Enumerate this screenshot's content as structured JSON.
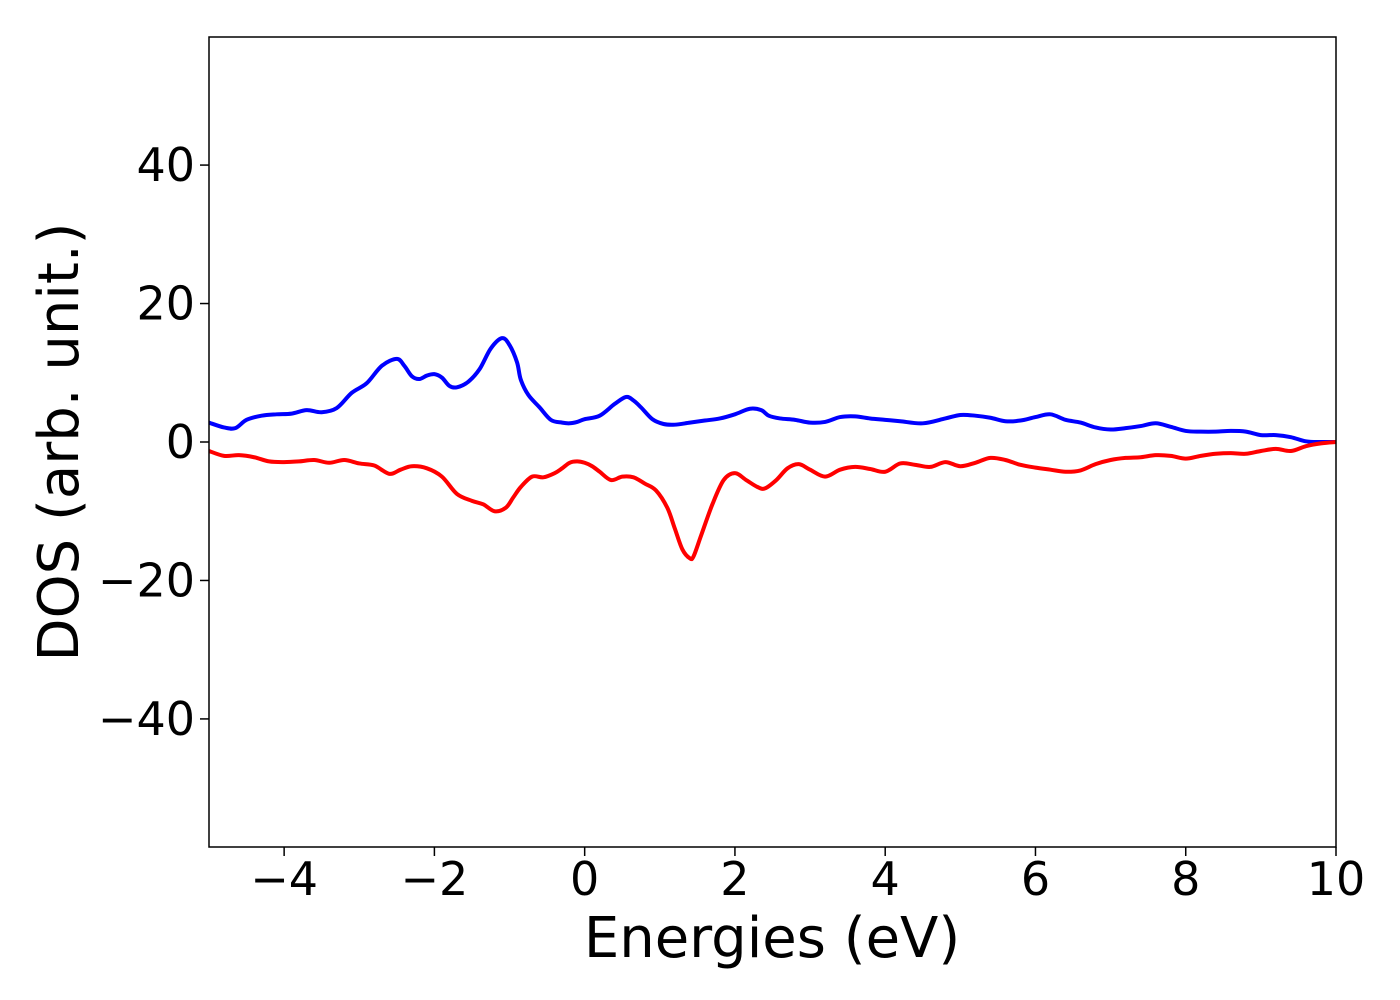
{
  "chart_data": {
    "type": "line",
    "title": "",
    "xlabel": "Energies (eV)",
    "ylabel": "DOS (arb. unit.)",
    "xlim": [
      -5,
      10
    ],
    "ylim": [
      -58.5,
      58.5
    ],
    "x_ticks": [
      {
        "value": -4,
        "label": "−4"
      },
      {
        "value": -2,
        "label": "−2"
      },
      {
        "value": 0,
        "label": "0"
      },
      {
        "value": 2,
        "label": "2"
      },
      {
        "value": 4,
        "label": "4"
      },
      {
        "value": 6,
        "label": "6"
      },
      {
        "value": 8,
        "label": "8"
      },
      {
        "value": 10,
        "label": "10"
      }
    ],
    "y_ticks": [
      {
        "value": 40,
        "label": "40"
      },
      {
        "value": 20,
        "label": "20"
      },
      {
        "value": 0,
        "label": "0"
      },
      {
        "value": -20,
        "label": "−20"
      },
      {
        "value": -40,
        "label": "−40"
      }
    ],
    "grid": false,
    "legend": "none",
    "series": [
      {
        "color": "#0000ff",
        "x": [
          -5.0,
          -4.8,
          -4.65,
          -4.5,
          -4.3,
          -4.1,
          -3.9,
          -3.7,
          -3.5,
          -3.3,
          -3.1,
          -2.9,
          -2.7,
          -2.5,
          -2.4,
          -2.3,
          -2.2,
          -2.1,
          -2.0,
          -1.9,
          -1.8,
          -1.7,
          -1.55,
          -1.4,
          -1.25,
          -1.1,
          -1.0,
          -0.9,
          -0.85,
          -0.75,
          -0.6,
          -0.45,
          -0.3,
          -0.2,
          -0.1,
          0.0,
          0.2,
          0.4,
          0.55,
          0.65,
          0.75,
          0.9,
          1.05,
          1.2,
          1.4,
          1.6,
          1.8,
          2.0,
          2.2,
          2.35,
          2.45,
          2.6,
          2.8,
          3.0,
          3.2,
          3.4,
          3.6,
          3.8,
          4.0,
          4.2,
          4.5,
          4.8,
          5.0,
          5.2,
          5.4,
          5.6,
          5.8,
          6.0,
          6.2,
          6.4,
          6.6,
          6.8,
          7.0,
          7.2,
          7.4,
          7.6,
          7.8,
          8.0,
          8.2,
          8.4,
          8.6,
          8.8,
          9.0,
          9.2,
          9.4,
          9.6,
          9.8,
          10.0
        ],
        "y": [
          2.8,
          2.1,
          2.0,
          3.2,
          3.8,
          4.0,
          4.1,
          4.6,
          4.3,
          4.9,
          7.1,
          8.5,
          11.0,
          12.0,
          11.0,
          9.5,
          9.1,
          9.6,
          9.8,
          9.3,
          8.1,
          7.9,
          8.7,
          10.5,
          13.5,
          15.0,
          14.0,
          11.5,
          9.0,
          6.8,
          5.0,
          3.2,
          2.8,
          2.7,
          2.9,
          3.3,
          3.8,
          5.5,
          6.5,
          6.0,
          5.0,
          3.3,
          2.6,
          2.5,
          2.8,
          3.1,
          3.4,
          4.0,
          4.8,
          4.6,
          3.8,
          3.4,
          3.2,
          2.8,
          2.9,
          3.6,
          3.7,
          3.4,
          3.2,
          3.0,
          2.7,
          3.4,
          3.9,
          3.8,
          3.5,
          3.0,
          3.1,
          3.6,
          4.0,
          3.2,
          2.8,
          2.1,
          1.8,
          2.0,
          2.3,
          2.7,
          2.2,
          1.6,
          1.5,
          1.5,
          1.6,
          1.5,
          1.0,
          1.0,
          0.7,
          0.1,
          0.0,
          0.0
        ]
      },
      {
        "color": "#ff0000",
        "x": [
          -5.0,
          -4.8,
          -4.6,
          -4.4,
          -4.2,
          -4.0,
          -3.8,
          -3.6,
          -3.4,
          -3.2,
          -3.0,
          -2.8,
          -2.6,
          -2.45,
          -2.3,
          -2.1,
          -1.9,
          -1.7,
          -1.5,
          -1.35,
          -1.2,
          -1.05,
          -0.95,
          -0.85,
          -0.7,
          -0.55,
          -0.4,
          -0.3,
          -0.2,
          -0.1,
          0.0,
          0.1,
          0.2,
          0.35,
          0.5,
          0.65,
          0.8,
          0.95,
          1.1,
          1.2,
          1.3,
          1.4,
          1.45,
          1.55,
          1.7,
          1.85,
          2.0,
          2.15,
          2.3,
          2.4,
          2.55,
          2.7,
          2.85,
          3.0,
          3.2,
          3.4,
          3.6,
          3.8,
          4.0,
          4.2,
          4.4,
          4.6,
          4.8,
          5.0,
          5.2,
          5.4,
          5.6,
          5.8,
          6.0,
          6.2,
          6.4,
          6.6,
          6.8,
          7.0,
          7.2,
          7.4,
          7.6,
          7.8,
          8.0,
          8.2,
          8.4,
          8.6,
          8.8,
          9.0,
          9.2,
          9.4,
          9.6,
          9.8,
          10.0
        ],
        "y": [
          -1.3,
          -2.0,
          -1.9,
          -2.2,
          -2.8,
          -2.9,
          -2.8,
          -2.6,
          -3.0,
          -2.6,
          -3.1,
          -3.4,
          -4.6,
          -4.0,
          -3.5,
          -3.8,
          -5.0,
          -7.5,
          -8.5,
          -9.0,
          -10.0,
          -9.5,
          -8.0,
          -6.5,
          -5.0,
          -5.1,
          -4.5,
          -3.8,
          -3.0,
          -2.8,
          -3.0,
          -3.5,
          -4.3,
          -5.5,
          -5.0,
          -5.1,
          -6.0,
          -7.0,
          -9.5,
          -12.5,
          -15.5,
          -16.8,
          -16.5,
          -13.5,
          -9.0,
          -5.5,
          -4.5,
          -5.5,
          -6.5,
          -6.7,
          -5.5,
          -3.8,
          -3.2,
          -4.0,
          -5.0,
          -4.0,
          -3.6,
          -3.9,
          -4.3,
          -3.1,
          -3.3,
          -3.6,
          -2.9,
          -3.5,
          -3.0,
          -2.3,
          -2.6,
          -3.3,
          -3.7,
          -4.0,
          -4.3,
          -4.1,
          -3.2,
          -2.6,
          -2.3,
          -2.2,
          -1.9,
          -2.0,
          -2.4,
          -2.0,
          -1.7,
          -1.6,
          -1.7,
          -1.3,
          -1.0,
          -1.3,
          -0.6,
          -0.2,
          0.0
        ]
      }
    ]
  }
}
